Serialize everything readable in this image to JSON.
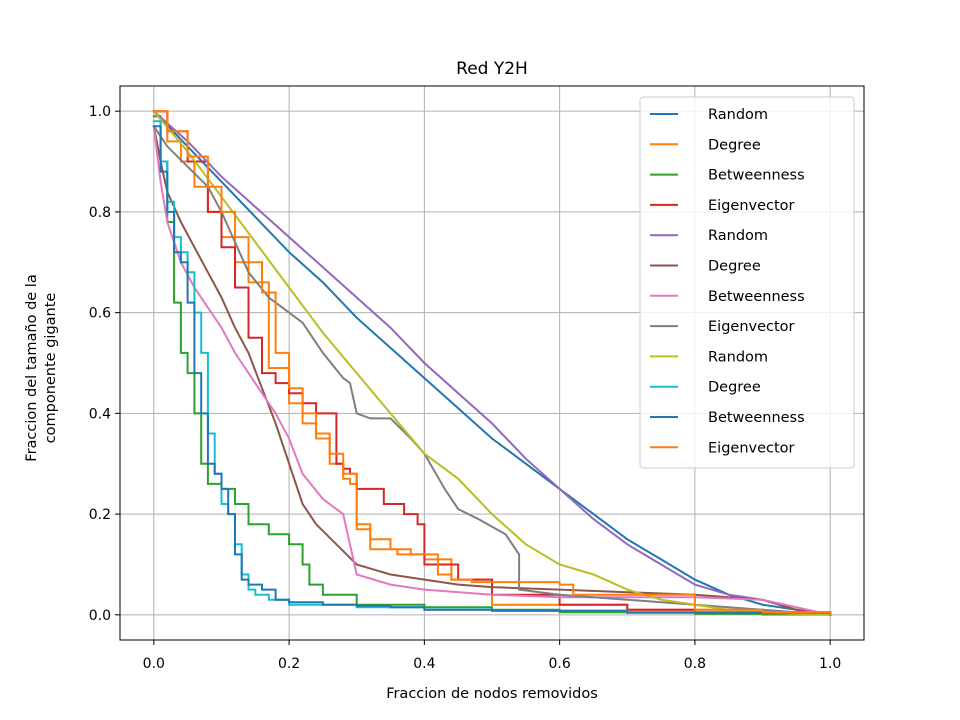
{
  "chart_data": {
    "type": "line",
    "title": "Red Y2H",
    "xlabel": "Fraccion de nodos removidos",
    "ylabel_lines": [
      "Fraccion del tamaño de la",
      "componente gigante"
    ],
    "xlim": [
      -0.05,
      1.05
    ],
    "ylim": [
      -0.05,
      1.05
    ],
    "xticks": [
      0.0,
      0.2,
      0.4,
      0.6,
      0.8,
      1.0
    ],
    "yticks": [
      0.0,
      0.2,
      0.4,
      0.6,
      0.8,
      1.0
    ],
    "xtick_labels": [
      "0.0",
      "0.2",
      "0.4",
      "0.6",
      "0.8",
      "1.0"
    ],
    "ytick_labels": [
      "0.0",
      "0.2",
      "0.4",
      "0.6",
      "0.8",
      "1.0"
    ],
    "grid": true,
    "legend_position": "top-right",
    "series": [
      {
        "name": "Random",
        "color": "#1f77b4",
        "step": false,
        "x": [
          0,
          0.05,
          0.1,
          0.15,
          0.2,
          0.25,
          0.3,
          0.35,
          0.4,
          0.45,
          0.5,
          0.55,
          0.6,
          0.65,
          0.7,
          0.75,
          0.8,
          0.85,
          0.9,
          0.95,
          1.0
        ],
        "y": [
          1.0,
          0.93,
          0.86,
          0.79,
          0.72,
          0.66,
          0.59,
          0.53,
          0.47,
          0.41,
          0.35,
          0.3,
          0.25,
          0.2,
          0.15,
          0.11,
          0.07,
          0.04,
          0.02,
          0.01,
          0.0
        ]
      },
      {
        "name": "Degree",
        "color": "#ff7f0e",
        "step": true,
        "x": [
          0,
          0.02,
          0.04,
          0.06,
          0.08,
          0.1,
          0.12,
          0.14,
          0.17,
          0.17,
          0.2,
          0.22,
          0.24,
          0.26,
          0.28,
          0.29,
          0.3,
          0.32,
          0.36,
          0.4,
          0.44,
          0.5,
          0.6,
          0.7,
          0.8,
          0.9,
          0.95,
          1.0
        ],
        "y": [
          1.0,
          0.94,
          0.9,
          0.85,
          0.8,
          0.75,
          0.7,
          0.66,
          0.6,
          0.49,
          0.42,
          0.38,
          0.35,
          0.3,
          0.27,
          0.26,
          0.17,
          0.13,
          0.12,
          0.11,
          0.07,
          0.02,
          0.02,
          0.01,
          0.01,
          0.0,
          0.0,
          0.0
        ]
      },
      {
        "name": "Betweenness",
        "color": "#2ca02c",
        "step": true,
        "x": [
          0,
          0.01,
          0.02,
          0.03,
          0.04,
          0.05,
          0.06,
          0.07,
          0.08,
          0.1,
          0.12,
          0.14,
          0.17,
          0.2,
          0.22,
          0.23,
          0.25,
          0.3,
          0.4,
          0.5,
          0.6,
          0.8,
          1.0
        ],
        "y": [
          0.99,
          0.9,
          0.78,
          0.62,
          0.52,
          0.48,
          0.4,
          0.3,
          0.26,
          0.25,
          0.22,
          0.18,
          0.16,
          0.14,
          0.1,
          0.06,
          0.04,
          0.02,
          0.015,
          0.01,
          0.005,
          0.002,
          0.0
        ]
      },
      {
        "name": "Eigenvector",
        "color": "#d62728",
        "step": true,
        "x": [
          0,
          0.02,
          0.05,
          0.08,
          0.1,
          0.12,
          0.14,
          0.16,
          0.18,
          0.2,
          0.22,
          0.24,
          0.27,
          0.28,
          0.29,
          0.3,
          0.34,
          0.37,
          0.39,
          0.4,
          0.45,
          0.5,
          0.6,
          0.7,
          0.8,
          1.0
        ],
        "y": [
          1.0,
          0.96,
          0.9,
          0.8,
          0.73,
          0.65,
          0.55,
          0.48,
          0.46,
          0.44,
          0.42,
          0.4,
          0.3,
          0.29,
          0.28,
          0.25,
          0.22,
          0.2,
          0.18,
          0.1,
          0.07,
          0.04,
          0.02,
          0.01,
          0.005,
          0.0
        ]
      },
      {
        "name": "Random",
        "color": "#9467bd",
        "step": false,
        "x": [
          0,
          0.05,
          0.1,
          0.15,
          0.2,
          0.25,
          0.3,
          0.35,
          0.4,
          0.45,
          0.5,
          0.55,
          0.6,
          0.65,
          0.7,
          0.75,
          0.8,
          0.85,
          0.9,
          0.95,
          1.0
        ],
        "y": [
          1.0,
          0.94,
          0.87,
          0.81,
          0.75,
          0.69,
          0.63,
          0.57,
          0.5,
          0.44,
          0.38,
          0.31,
          0.25,
          0.19,
          0.14,
          0.1,
          0.06,
          0.04,
          0.03,
          0.01,
          0.0
        ]
      },
      {
        "name": "Degree",
        "color": "#8c564b",
        "step": false,
        "x": [
          0,
          0.01,
          0.02,
          0.04,
          0.06,
          0.08,
          0.1,
          0.12,
          0.14,
          0.16,
          0.18,
          0.2,
          0.22,
          0.24,
          0.27,
          0.3,
          0.35,
          0.4,
          0.45,
          0.5,
          0.6,
          0.7,
          0.8,
          0.9,
          0.95,
          1.0
        ],
        "y": [
          0.97,
          0.9,
          0.84,
          0.78,
          0.73,
          0.68,
          0.63,
          0.57,
          0.52,
          0.45,
          0.38,
          0.3,
          0.22,
          0.18,
          0.14,
          0.1,
          0.08,
          0.07,
          0.06,
          0.055,
          0.05,
          0.045,
          0.04,
          0.03,
          0.01,
          0.0
        ]
      },
      {
        "name": "Betweenness",
        "color": "#e377c2",
        "step": false,
        "x": [
          0,
          0.01,
          0.02,
          0.04,
          0.06,
          0.08,
          0.1,
          0.12,
          0.14,
          0.16,
          0.18,
          0.2,
          0.22,
          0.25,
          0.28,
          0.3,
          0.35,
          0.4,
          0.5,
          0.6,
          0.7,
          0.8,
          0.9,
          1.0
        ],
        "y": [
          0.97,
          0.86,
          0.78,
          0.7,
          0.65,
          0.61,
          0.57,
          0.52,
          0.48,
          0.44,
          0.4,
          0.35,
          0.28,
          0.23,
          0.2,
          0.08,
          0.06,
          0.05,
          0.04,
          0.035,
          0.035,
          0.035,
          0.03,
          0.0
        ]
      },
      {
        "name": "Eigenvector",
        "color": "#7f7f7f",
        "step": false,
        "x": [
          0,
          0.02,
          0.05,
          0.08,
          0.1,
          0.12,
          0.14,
          0.17,
          0.2,
          0.22,
          0.25,
          0.28,
          0.29,
          0.3,
          0.32,
          0.35,
          0.38,
          0.4,
          0.43,
          0.45,
          0.48,
          0.52,
          0.54,
          0.54,
          0.6,
          0.7,
          0.8,
          0.9,
          1.0
        ],
        "y": [
          0.97,
          0.93,
          0.89,
          0.85,
          0.8,
          0.74,
          0.68,
          0.63,
          0.6,
          0.58,
          0.52,
          0.47,
          0.46,
          0.4,
          0.39,
          0.39,
          0.35,
          0.32,
          0.25,
          0.21,
          0.19,
          0.16,
          0.12,
          0.05,
          0.04,
          0.03,
          0.02,
          0.01,
          0.0
        ]
      },
      {
        "name": "Random",
        "color": "#bcbd22",
        "step": false,
        "x": [
          0,
          0.05,
          0.1,
          0.15,
          0.2,
          0.25,
          0.3,
          0.35,
          0.4,
          0.45,
          0.5,
          0.55,
          0.6,
          0.65,
          0.7,
          0.75,
          0.8,
          0.85,
          0.9,
          0.95,
          1.0
        ],
        "y": [
          1.0,
          0.92,
          0.83,
          0.74,
          0.65,
          0.56,
          0.48,
          0.4,
          0.32,
          0.27,
          0.2,
          0.14,
          0.1,
          0.08,
          0.05,
          0.03,
          0.02,
          0.01,
          0.005,
          0.002,
          0.0
        ]
      },
      {
        "name": "Degree",
        "color": "#17becf",
        "step": true,
        "x": [
          0,
          0.01,
          0.02,
          0.03,
          0.04,
          0.05,
          0.06,
          0.07,
          0.08,
          0.09,
          0.1,
          0.11,
          0.12,
          0.13,
          0.14,
          0.15,
          0.17,
          0.2,
          0.3,
          0.4,
          0.5,
          0.7,
          1.0
        ],
        "y": [
          0.98,
          0.9,
          0.82,
          0.75,
          0.72,
          0.68,
          0.6,
          0.52,
          0.36,
          0.28,
          0.22,
          0.2,
          0.14,
          0.08,
          0.05,
          0.04,
          0.03,
          0.02,
          0.015,
          0.01,
          0.008,
          0.005,
          0.0
        ]
      },
      {
        "name": "Betweenness",
        "color": "#1f77b4",
        "step": true,
        "x": [
          0,
          0.01,
          0.02,
          0.03,
          0.04,
          0.05,
          0.06,
          0.07,
          0.08,
          0.09,
          0.1,
          0.11,
          0.12,
          0.13,
          0.14,
          0.16,
          0.18,
          0.2,
          0.25,
          0.3,
          0.35,
          0.4,
          0.5,
          0.7,
          1.0
        ],
        "y": [
          0.97,
          0.88,
          0.8,
          0.72,
          0.7,
          0.62,
          0.48,
          0.4,
          0.3,
          0.28,
          0.25,
          0.2,
          0.12,
          0.07,
          0.06,
          0.05,
          0.03,
          0.025,
          0.02,
          0.018,
          0.015,
          0.01,
          0.008,
          0.004,
          0.0
        ]
      },
      {
        "name": "Eigenvector",
        "color": "#ff7f0e",
        "step": true,
        "x": [
          0,
          0.02,
          0.05,
          0.08,
          0.1,
          0.12,
          0.14,
          0.16,
          0.18,
          0.2,
          0.22,
          0.24,
          0.26,
          0.28,
          0.3,
          0.32,
          0.35,
          0.38,
          0.42,
          0.44,
          0.47,
          0.6,
          0.62,
          0.8,
          0.9,
          1.0
        ],
        "y": [
          1.0,
          0.96,
          0.91,
          0.85,
          0.8,
          0.75,
          0.7,
          0.64,
          0.52,
          0.45,
          0.4,
          0.36,
          0.32,
          0.28,
          0.18,
          0.15,
          0.13,
          0.12,
          0.08,
          0.07,
          0.065,
          0.06,
          0.04,
          0.01,
          0.005,
          0.0
        ]
      }
    ]
  }
}
